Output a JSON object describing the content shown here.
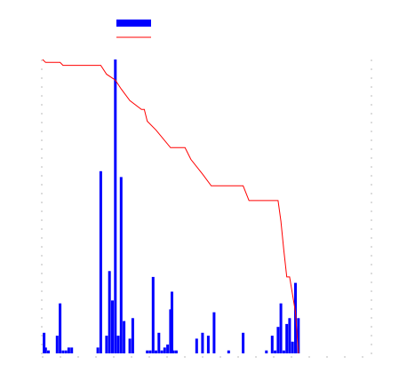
{
  "chart_data": {
    "type": "bar+line",
    "title": "",
    "xlabel": "",
    "ylabel": "",
    "y2label": "",
    "grid": false,
    "legend_position": "top-center",
    "x_range": [
      0,
      100
    ],
    "y_range": [
      0,
      100
    ],
    "y2_range": [
      0,
      100
    ],
    "series": [
      {
        "type": "bar",
        "color": "#0000ff",
        "points": [
          [
            0.5,
            7
          ],
          [
            1,
            2
          ],
          [
            2,
            1
          ],
          [
            5,
            6
          ],
          [
            6,
            17
          ],
          [
            7,
            1
          ],
          [
            8,
            1
          ],
          [
            9,
            2
          ],
          [
            10,
            2
          ],
          [
            19,
            2
          ],
          [
            20,
            62
          ],
          [
            22,
            6
          ],
          [
            23,
            28
          ],
          [
            24,
            18
          ],
          [
            25,
            100
          ],
          [
            26,
            6
          ],
          [
            27,
            60
          ],
          [
            28,
            11
          ],
          [
            30,
            5
          ],
          [
            31,
            12
          ],
          [
            36,
            1
          ],
          [
            37,
            1
          ],
          [
            38,
            26
          ],
          [
            39,
            1
          ],
          [
            40,
            7
          ],
          [
            41,
            1
          ],
          [
            42,
            2
          ],
          [
            43,
            3
          ],
          [
            44,
            15
          ],
          [
            44.5,
            21
          ],
          [
            45,
            1
          ],
          [
            46,
            1
          ],
          [
            53,
            5
          ],
          [
            55,
            7
          ],
          [
            57,
            6
          ],
          [
            59,
            14
          ],
          [
            64,
            1
          ],
          [
            69,
            7
          ],
          [
            77,
            1
          ],
          [
            79,
            6
          ],
          [
            80,
            1
          ],
          [
            81,
            9
          ],
          [
            82,
            17
          ],
          [
            83,
            1
          ],
          [
            84,
            10
          ],
          [
            85,
            12
          ],
          [
            86,
            4
          ],
          [
            87,
            24
          ],
          [
            88,
            12
          ]
        ]
      },
      {
        "type": "line",
        "color": "#ff0000",
        "points": [
          [
            0,
            100
          ],
          [
            1,
            99
          ],
          [
            6,
            99
          ],
          [
            7,
            98
          ],
          [
            20,
            98
          ],
          [
            22,
            95
          ],
          [
            25,
            93
          ],
          [
            27,
            90
          ],
          [
            30,
            86
          ],
          [
            34,
            83
          ],
          [
            35,
            83
          ],
          [
            36,
            79
          ],
          [
            39,
            76
          ],
          [
            44,
            70
          ],
          [
            49,
            70
          ],
          [
            51,
            66
          ],
          [
            55,
            61
          ],
          [
            58,
            57
          ],
          [
            69,
            57
          ],
          [
            71,
            52
          ],
          [
            81,
            52
          ],
          [
            82,
            45
          ],
          [
            83,
            35
          ],
          [
            84,
            26
          ],
          [
            85,
            26
          ],
          [
            86,
            20
          ],
          [
            87,
            14
          ],
          [
            88,
            0
          ]
        ]
      }
    ]
  }
}
